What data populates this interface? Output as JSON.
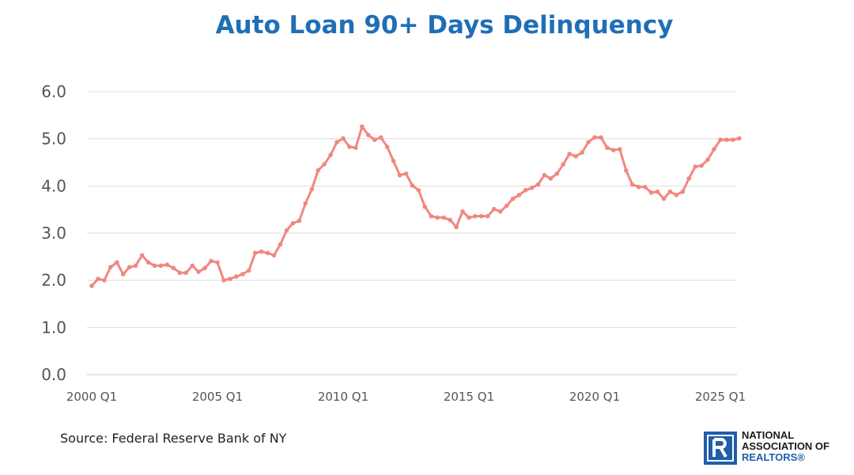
{
  "chart_data": {
    "type": "line",
    "title": "Auto Loan 90+ Days Delinquency",
    "xlabel": "",
    "ylabel": "",
    "ylim": [
      0,
      6
    ],
    "y_ticks": [
      "0.0",
      "1.0",
      "2.0",
      "3.0",
      "4.0",
      "5.0",
      "6.0"
    ],
    "x_tick_labels": [
      "2000 Q1",
      "2005 Q1",
      "2010 Q1",
      "2015 Q1",
      "2020 Q1",
      "2025 Q1"
    ],
    "grid": true,
    "legend": "none",
    "series": [
      {
        "color": "#f08880",
        "x_start": "2000 Q1",
        "frequency": "quarterly",
        "values": [
          1.88,
          2.03,
          2.0,
          2.28,
          2.38,
          2.13,
          2.28,
          2.31,
          2.53,
          2.38,
          2.31,
          2.31,
          2.33,
          2.26,
          2.16,
          2.16,
          2.31,
          2.18,
          2.26,
          2.41,
          2.38,
          2.0,
          2.03,
          2.08,
          2.13,
          2.21,
          2.58,
          2.61,
          2.58,
          2.53,
          2.76,
          3.06,
          3.21,
          3.26,
          3.63,
          3.93,
          4.33,
          4.46,
          4.66,
          4.93,
          5.01,
          4.83,
          4.81,
          5.26,
          5.08,
          4.98,
          5.03,
          4.83,
          4.53,
          4.23,
          4.26,
          4.01,
          3.91,
          3.56,
          3.36,
          3.33,
          3.33,
          3.28,
          3.13,
          3.46,
          3.33,
          3.36,
          3.36,
          3.36,
          3.51,
          3.46,
          3.58,
          3.73,
          3.81,
          3.91,
          3.96,
          4.03,
          4.23,
          4.16,
          4.26,
          4.46,
          4.68,
          4.63,
          4.71,
          4.93,
          5.03,
          5.03,
          4.81,
          4.76,
          4.78,
          4.33,
          4.03,
          3.98,
          3.98,
          3.86,
          3.88,
          3.73,
          3.88,
          3.81,
          3.88,
          4.16,
          4.41,
          4.43,
          4.56,
          4.78,
          4.98,
          4.98,
          4.98,
          5.01
        ]
      }
    ]
  },
  "source": "Source: Federal Reserve Bank of NY",
  "logo": {
    "line1": "NATIONAL",
    "line2": "ASSOCIATION OF",
    "line3": "REALTORS®"
  }
}
